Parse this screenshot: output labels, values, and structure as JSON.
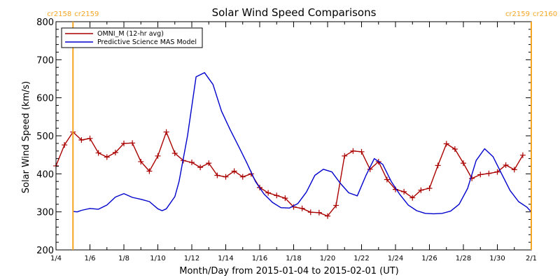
{
  "chart_data": {
    "type": "line",
    "title": "Solar Wind Speed Comparisons",
    "xlabel": "Month/Day from 2015-01-04 to 2015-02-01 (UT)",
    "ylabel": "Solar Wind Speed (km/s)",
    "xlim": [
      "2015-01-04",
      "2015-02-01"
    ],
    "ylim": [
      200,
      800
    ],
    "yticks": [
      200,
      300,
      400,
      500,
      600,
      700,
      800
    ],
    "xticks": [
      {
        "date": "2015-01-04",
        "label": "1/4"
      },
      {
        "date": "2015-01-06",
        "label": "1/6"
      },
      {
        "date": "2015-01-08",
        "label": "1/8"
      },
      {
        "date": "2015-01-10",
        "label": "1/10"
      },
      {
        "date": "2015-01-12",
        "label": "1/12"
      },
      {
        "date": "2015-01-14",
        "label": "1/14"
      },
      {
        "date": "2015-01-16",
        "label": "1/16"
      },
      {
        "date": "2015-01-18",
        "label": "1/18"
      },
      {
        "date": "2015-01-20",
        "label": "1/20"
      },
      {
        "date": "2015-01-22",
        "label": "1/22"
      },
      {
        "date": "2015-01-24",
        "label": "1/24"
      },
      {
        "date": "2015-01-26",
        "label": "1/26"
      },
      {
        "date": "2015-01-28",
        "label": "1/28"
      },
      {
        "date": "2015-01-30",
        "label": "1/30"
      },
      {
        "date": "2015-02-01",
        "label": "2/1"
      }
    ],
    "legend_position": "top-left",
    "grid": false,
    "markers": [
      {
        "date": "2015-01-05T00:00",
        "label_left": "cr2158",
        "label_right": "cr2159",
        "color": "#f5a623"
      },
      {
        "date": "2015-02-01T00:00",
        "label_left": "cr2159",
        "label_right": "cr2160",
        "color": "#f5a623"
      }
    ],
    "series": [
      {
        "name": "OMNI_M (12-hr avg)",
        "color": "#aa0000",
        "marker": "plus",
        "points": [
          [
            "2015-01-04T00:00",
            421
          ],
          [
            "2015-01-04T12:00",
            476
          ],
          [
            "2015-01-05T00:00",
            510
          ],
          [
            "2015-01-05T12:00",
            489
          ],
          [
            "2015-01-06T00:00",
            493
          ],
          [
            "2015-01-06T12:00",
            455
          ],
          [
            "2015-01-07T00:00",
            444
          ],
          [
            "2015-01-07T12:00",
            456
          ],
          [
            "2015-01-08T00:00",
            480
          ],
          [
            "2015-01-08T12:00",
            481
          ],
          [
            "2015-01-09T00:00",
            432
          ],
          [
            "2015-01-09T12:00",
            407
          ],
          [
            "2015-01-10T00:00",
            447
          ],
          [
            "2015-01-10T12:00",
            510
          ],
          [
            "2015-01-11T00:00",
            454
          ],
          [
            "2015-01-11T12:00",
            435
          ],
          [
            "2015-01-12T00:00",
            430
          ],
          [
            "2015-01-12T12:00",
            417
          ],
          [
            "2015-01-13T00:00",
            428
          ],
          [
            "2015-01-13T12:00",
            396
          ],
          [
            "2015-01-14T00:00",
            392
          ],
          [
            "2015-01-14T12:00",
            407
          ],
          [
            "2015-01-15T00:00",
            392
          ],
          [
            "2015-01-15T12:00",
            400
          ],
          [
            "2015-01-16T00:00",
            364
          ],
          [
            "2015-01-16T12:00",
            350
          ],
          [
            "2015-01-17T00:00",
            343
          ],
          [
            "2015-01-17T12:00",
            336
          ],
          [
            "2015-01-18T00:00",
            313
          ],
          [
            "2015-01-18T12:00",
            309
          ],
          [
            "2015-01-19T00:00",
            299
          ],
          [
            "2015-01-19T12:00",
            298
          ],
          [
            "2015-01-20T00:00",
            289
          ],
          [
            "2015-01-20T12:00",
            317
          ],
          [
            "2015-01-21T00:00",
            447
          ],
          [
            "2015-01-21T12:00",
            460
          ],
          [
            "2015-01-22T00:00",
            458
          ],
          [
            "2015-01-22T12:00",
            412
          ],
          [
            "2015-01-23T00:00",
            432
          ],
          [
            "2015-01-23T12:00",
            385
          ],
          [
            "2015-01-24T00:00",
            359
          ],
          [
            "2015-01-24T12:00",
            353
          ],
          [
            "2015-01-25T00:00",
            337
          ],
          [
            "2015-01-25T12:00",
            357
          ],
          [
            "2015-01-26T00:00",
            362
          ],
          [
            "2015-01-26T12:00",
            422
          ],
          [
            "2015-01-27T00:00",
            479
          ],
          [
            "2015-01-27T12:00",
            465
          ],
          [
            "2015-01-28T00:00",
            428
          ],
          [
            "2015-01-28T12:00",
            388
          ],
          [
            "2015-01-29T00:00",
            398
          ],
          [
            "2015-01-29T12:00",
            401
          ],
          [
            "2015-01-30T00:00",
            405
          ],
          [
            "2015-01-30T12:00",
            423
          ],
          [
            "2015-01-31T00:00",
            411
          ],
          [
            "2015-01-31T12:00",
            449
          ]
        ]
      },
      {
        "name": "Predictive Science MAS Model",
        "color": "#0000cc",
        "marker": "none",
        "points": [
          [
            "2015-01-05T00:00",
            301
          ],
          [
            "2015-01-05T06:00",
            300
          ],
          [
            "2015-01-05T12:00",
            304
          ],
          [
            "2015-01-06T00:00",
            309
          ],
          [
            "2015-01-06T12:00",
            307
          ],
          [
            "2015-01-07T00:00",
            318
          ],
          [
            "2015-01-07T12:00",
            339
          ],
          [
            "2015-01-08T00:00",
            348
          ],
          [
            "2015-01-08T12:00",
            338
          ],
          [
            "2015-01-09T00:00",
            333
          ],
          [
            "2015-01-09T12:00",
            327
          ],
          [
            "2015-01-10T00:00",
            308
          ],
          [
            "2015-01-10T06:00",
            303
          ],
          [
            "2015-01-10T12:00",
            308
          ],
          [
            "2015-01-11T00:00",
            340
          ],
          [
            "2015-01-11T06:00",
            380
          ],
          [
            "2015-01-11T18:00",
            500
          ],
          [
            "2015-01-12T06:00",
            655
          ],
          [
            "2015-01-12T18:00",
            666
          ],
          [
            "2015-01-13T06:00",
            635
          ],
          [
            "2015-01-13T18:00",
            565
          ],
          [
            "2015-01-14T06:00",
            517
          ],
          [
            "2015-01-14T18:00",
            473
          ],
          [
            "2015-01-15T06:00",
            428
          ],
          [
            "2015-01-15T18:00",
            380
          ],
          [
            "2015-01-16T06:00",
            347
          ],
          [
            "2015-01-16T18:00",
            325
          ],
          [
            "2015-01-17T06:00",
            311
          ],
          [
            "2015-01-17T18:00",
            310
          ],
          [
            "2015-01-18T06:00",
            322
          ],
          [
            "2015-01-18T18:00",
            352
          ],
          [
            "2015-01-19T06:00",
            396
          ],
          [
            "2015-01-19T18:00",
            412
          ],
          [
            "2015-01-20T06:00",
            405
          ],
          [
            "2015-01-20T18:00",
            375
          ],
          [
            "2015-01-21T06:00",
            350
          ],
          [
            "2015-01-21T18:00",
            342
          ],
          [
            "2015-01-22T06:00",
            395
          ],
          [
            "2015-01-22T18:00",
            440
          ],
          [
            "2015-01-23T06:00",
            425
          ],
          [
            "2015-01-23T18:00",
            380
          ],
          [
            "2015-01-24T06:00",
            346
          ],
          [
            "2015-01-24T18:00",
            318
          ],
          [
            "2015-01-25T06:00",
            303
          ],
          [
            "2015-01-25T18:00",
            296
          ],
          [
            "2015-01-26T06:00",
            295
          ],
          [
            "2015-01-26T18:00",
            296
          ],
          [
            "2015-01-27T06:00",
            302
          ],
          [
            "2015-01-27T18:00",
            320
          ],
          [
            "2015-01-28T06:00",
            362
          ],
          [
            "2015-01-28T18:00",
            435
          ],
          [
            "2015-01-29T06:00",
            466
          ],
          [
            "2015-01-29T18:00",
            445
          ],
          [
            "2015-01-30T06:00",
            400
          ],
          [
            "2015-01-30T18:00",
            356
          ],
          [
            "2015-01-31T06:00",
            327
          ],
          [
            "2015-01-31T18:00",
            312
          ],
          [
            "2015-02-01T00:00",
            300
          ]
        ]
      }
    ]
  }
}
